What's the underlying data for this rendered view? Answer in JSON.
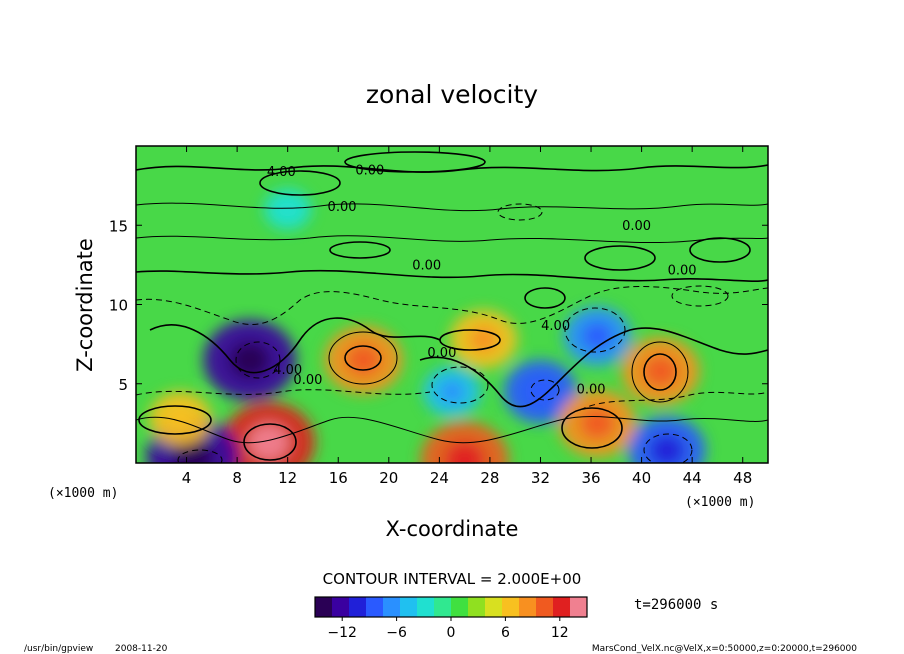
{
  "chart_data": {
    "type": "heatmap",
    "title": "zonal velocity",
    "xlabel": "X-coordinate",
    "ylabel": "Z-coordinate",
    "x_unit_left": "(×1000 m)",
    "x_unit_right": "(×1000 m)",
    "xlim": [
      0,
      50
    ],
    "ylim": [
      0,
      20
    ],
    "x_ticks": [
      4,
      8,
      12,
      16,
      20,
      24,
      28,
      32,
      36,
      40,
      44,
      48
    ],
    "y_ticks": [
      5,
      10,
      15
    ],
    "contour_interval_label": "CONTOUR INTERVAL = 2.000E+00",
    "contour_labels": [
      {
        "text": "4.00",
        "x": 11.5,
        "z": 18.1
      },
      {
        "text": "0.00",
        "x": 18.5,
        "z": 18.2
      },
      {
        "text": "0.00",
        "x": 16.3,
        "z": 15.9
      },
      {
        "text": "0.00",
        "x": 23.0,
        "z": 12.2
      },
      {
        "text": "0.00",
        "x": 39.6,
        "z": 14.7
      },
      {
        "text": "0.00",
        "x": 43.2,
        "z": 11.9
      },
      {
        "text": "4.00",
        "x": 33.2,
        "z": 8.4
      },
      {
        "text": "0.00",
        "x": 24.2,
        "z": 6.7
      },
      {
        "text": "4.00",
        "x": 12.0,
        "z": 5.6
      },
      {
        "text": "0.00",
        "x": 13.6,
        "z": 5.0
      },
      {
        "text": "0.00",
        "x": 36.0,
        "z": 4.4
      }
    ],
    "field_extrema": [
      {
        "x": 9.0,
        "z": 6.5,
        "value": -12
      },
      {
        "x": 18.0,
        "z": 6.5,
        "value": 9
      },
      {
        "x": 25.0,
        "z": 4.5,
        "value": -5
      },
      {
        "x": 32.0,
        "z": 4.5,
        "value": -8
      },
      {
        "x": 36.5,
        "z": 8.0,
        "value": -7
      },
      {
        "x": 41.5,
        "z": 5.8,
        "value": 9
      },
      {
        "x": 10.5,
        "z": 1.3,
        "value": 12
      },
      {
        "x": 26.0,
        "z": 0.2,
        "value": 11
      },
      {
        "x": 36.5,
        "z": 2.5,
        "value": 9
      },
      {
        "x": 4.5,
        "z": 0.4,
        "value": -12
      },
      {
        "x": 42.0,
        "z": 0.8,
        "value": -9
      },
      {
        "x": 3.5,
        "z": 2.8,
        "value": 6
      },
      {
        "x": 12.0,
        "z": 16.0,
        "value": -3
      },
      {
        "x": 27.5,
        "z": 7.8,
        "value": 7
      }
    ],
    "colorbar": {
      "min": -15,
      "max": 15,
      "ticks": [
        -12,
        -6,
        0,
        6,
        12
      ],
      "tick_labels": [
        "−12",
        "−6",
        "0",
        "6",
        "12"
      ],
      "colors": [
        "#2a0055",
        "#3a00a0",
        "#2020d8",
        "#2a5aff",
        "#2a90ff",
        "#20c0f0",
        "#20e0d0",
        "#30e890",
        "#40e040",
        "#90e020",
        "#d8e020",
        "#f8c020",
        "#f89020",
        "#f05a20",
        "#e02020",
        "#f08090"
      ]
    },
    "time_label": "t=296000 s"
  },
  "footer": {
    "left_path": "/usr/bin/gpview",
    "left_date": "2008-11-20",
    "right_info": "MarsCond_VelX.nc@VelX,x=0:50000,z=0:20000,t=296000"
  }
}
